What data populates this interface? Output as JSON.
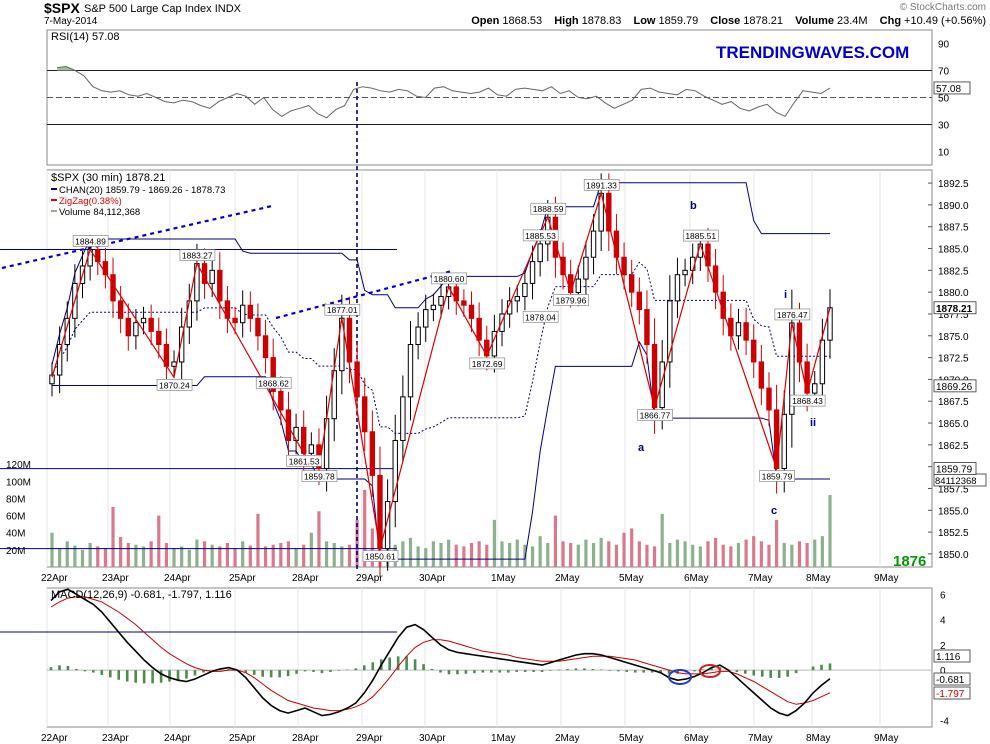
{
  "header": {
    "symbol": "$SPX",
    "name": "S&P 500 Large Cap Index",
    "exchange": "INDX",
    "date": "7-May-2014",
    "copyright": "© StockCharts.com",
    "open_label": "Open",
    "open": "1868.53",
    "high_label": "High",
    "high": "1878.83",
    "low_label": "Low",
    "low": "1859.79",
    "close_label": "Close",
    "close": "1878.21",
    "volume_label": "Volume",
    "volume": "23.4M",
    "chg_label": "Chg",
    "chg": "+10.49 (+0.56%)"
  },
  "watermark": "TRENDINGWAVES.COM",
  "target_label": "1876",
  "colors": {
    "up_candle": "#000000",
    "down_candle": "#cc0000",
    "channel": "#000080",
    "zigzag": "#dd0000",
    "volume_up": "#8fb08f",
    "volume_down": "#d87a8c",
    "rsi_line": "#666666",
    "macd": "#000000",
    "signal": "#cc0000",
    "histogram": "#4f8a4f",
    "watermark": "#0000cc",
    "target": "#009900",
    "trendline": "#0000cc"
  },
  "chart_data": [
    {
      "type": "line",
      "title": "RSI(14) 57.08",
      "ylim": [
        0,
        100
      ],
      "y_ticks": [
        10,
        30,
        50,
        70,
        90
      ],
      "reference_lines": [
        30,
        50,
        70
      ],
      "last_value": "57.08",
      "values": [
        72,
        73,
        70,
        66,
        58,
        55,
        54,
        55,
        52,
        51,
        53,
        50,
        47,
        46,
        48,
        47,
        44,
        42,
        47,
        50,
        53,
        51,
        45,
        50,
        41,
        36,
        40,
        42,
        44,
        38,
        35,
        41,
        44,
        56,
        58,
        57,
        55,
        54,
        56,
        55,
        51,
        50,
        57,
        58,
        55,
        54,
        53,
        54,
        57,
        52,
        51,
        56,
        57,
        56,
        55,
        58,
        53,
        55,
        50,
        49,
        51,
        46,
        42,
        45,
        48,
        56,
        57,
        54,
        53,
        52,
        56,
        55,
        51,
        48,
        45,
        47,
        42,
        40,
        43,
        45,
        39,
        36,
        46,
        55,
        54,
        53,
        57
      ]
    },
    {
      "type": "candlestick",
      "title": "$SPX (30 min) 1878.21",
      "legend": [
        "CHAN(20) 1859.79 - 1869.26 - 1878.73",
        "ZigZag(0.38%)",
        "Volume 84,112,368"
      ],
      "ylim": [
        1848.5,
        1894.0
      ],
      "y_ticks": [
        "1850.0",
        "1852.5",
        "1855.0",
        "1857.5",
        "1860.0",
        "1862.5",
        "1865.0",
        "1867.5",
        "1870.0",
        "1872.5",
        "1875.0",
        "1877.5",
        "1880.0",
        "1882.5",
        "1885.0",
        "1887.5",
        "1890.0",
        "1892.5"
      ],
      "x_labels": [
        "22Apr",
        "23Apr",
        "24Apr",
        "25Apr",
        "28Apr",
        "29Apr",
        "30Apr",
        "1May",
        "2May",
        "5May",
        "6May",
        "7May",
        "8May",
        "9May"
      ],
      "last_close_label": "1878.21",
      "channel_mid_label": "1869.26",
      "channel_low_label": "1859.79",
      "volume_last_label": "84112368",
      "volume_axis_labels": [
        "20M",
        "40M",
        "60M",
        "80M",
        "100M",
        "120M"
      ],
      "closes": [
        1870.5,
        1874,
        1877,
        1881,
        1883,
        1884.89,
        1883.5,
        1882,
        1879,
        1877,
        1875,
        1876.5,
        1877,
        1875.5,
        1874,
        1871.5,
        1872,
        1876,
        1879,
        1883.27,
        1881,
        1882.5,
        1879,
        1877,
        1876.5,
        1878.5,
        1877,
        1875,
        1872.5,
        1868.62,
        1866.5,
        1863,
        1864.5,
        1861.53,
        1862.5,
        1859.78,
        1865.5,
        1871,
        1877.01,
        1872,
        1868,
        1864,
        1859,
        1850.61,
        1856,
        1863,
        1868,
        1874,
        1876,
        1878,
        1878.5,
        1879.5,
        1880.6,
        1879,
        1878.5,
        1877,
        1874.5,
        1872.69,
        1875.5,
        1877.5,
        1879,
        1879.5,
        1881,
        1883.5,
        1885.53,
        1888.59,
        1884,
        1882,
        1879.96,
        1881.5,
        1884,
        1887,
        1891.33,
        1887,
        1884,
        1882,
        1880,
        1878,
        1874,
        1866.77,
        1872,
        1879,
        1882,
        1882.5,
        1884,
        1885.51,
        1883,
        1880,
        1877,
        1875,
        1876.5,
        1874.5,
        1872,
        1869,
        1866.5,
        1859.79,
        1866,
        1876.47,
        1872,
        1868.43,
        1869.5,
        1874.5,
        1878.21
      ],
      "zigzag": [
        [
          0,
          1870.24
        ],
        [
          5,
          1884.89
        ],
        [
          16,
          1870.24
        ],
        [
          19,
          1883.27
        ],
        [
          33,
          1861.53
        ],
        [
          35,
          1859.78
        ],
        [
          38,
          1877.01
        ],
        [
          43,
          1850.61
        ],
        [
          52,
          1880.6
        ],
        [
          57,
          1872.69
        ],
        [
          65,
          1888.59
        ],
        [
          68,
          1879.96
        ],
        [
          72,
          1891.33
        ],
        [
          79,
          1866.77
        ],
        [
          85,
          1885.51
        ],
        [
          95,
          1859.79
        ],
        [
          97,
          1876.47
        ],
        [
          99,
          1868.43
        ],
        [
          102,
          1878.21
        ]
      ],
      "annotations": [
        "1884.89",
        "1883.27",
        "1870.24",
        "1868.62",
        "1861.53",
        "1859.78",
        "1877.01",
        "1850.61",
        "1880.60",
        "1872.69",
        "1885.53",
        "1888.59",
        "1878.04",
        "1879.96",
        "1891.33",
        "1866.77",
        "1885.51",
        "1876.47",
        "1868.43",
        "1859.79"
      ],
      "wave_labels": [
        "a",
        "b",
        "c",
        "i",
        "ii"
      ],
      "volume": [
        40,
        22,
        30,
        25,
        20,
        28,
        24,
        22,
        70,
        35,
        28,
        26,
        24,
        30,
        60,
        28,
        22,
        24,
        20,
        32,
        30,
        26,
        24,
        28,
        22,
        30,
        25,
        62,
        24,
        26,
        28,
        30,
        22,
        26,
        40,
        65,
        30,
        28,
        24,
        26,
        55,
        90,
        45,
        30,
        28,
        26,
        30,
        34,
        24,
        22,
        30,
        28,
        32,
        26,
        24,
        28,
        30,
        26,
        55,
        30,
        28,
        32,
        26,
        24,
        36,
        28,
        60,
        30,
        28,
        26,
        32,
        28,
        34,
        30,
        26,
        40,
        45,
        30,
        26,
        24,
        62,
        28,
        32,
        30,
        26,
        24,
        30,
        34,
        26,
        24,
        28,
        32,
        36,
        30,
        26,
        55,
        28,
        26,
        30,
        28,
        32,
        36,
        84
      ]
    },
    {
      "type": "line",
      "title": "MACD(12,26,9) -0.681, -1.797, 1.116",
      "ylim": [
        -4.5,
        6.5
      ],
      "y_ticks": [
        "-4",
        "-2",
        "0",
        "2",
        "4",
        "6"
      ],
      "value_labels": [
        "1.116",
        "-0.681",
        "-1.797"
      ],
      "series": [
        {
          "name": "MACD",
          "values": [
            5.5,
            6.2,
            6.4,
            6.0,
            5.6,
            5.2,
            4.6,
            3.8,
            3.0,
            2.2,
            1.5,
            0.8,
            0.2,
            -0.3,
            -0.6,
            -0.8,
            -0.9,
            -0.7,
            -0.4,
            -0.1,
            0.1,
            0.2,
            0.0,
            -0.6,
            -1.4,
            -2.2,
            -2.8,
            -3.2,
            -3.4,
            -3.2,
            -3.0,
            -3.3,
            -3.6,
            -3.5,
            -3.3,
            -3.0,
            -2.6,
            -1.8,
            -0.8,
            0.4,
            1.5,
            2.6,
            3.4,
            3.6,
            3.2,
            2.6,
            2.0,
            1.6,
            1.4,
            1.3,
            1.2,
            1.1,
            1.0,
            0.9,
            0.8,
            0.7,
            0.6,
            0.5,
            0.4,
            0.6,
            0.8,
            1.0,
            1.2,
            1.3,
            1.3,
            1.2,
            1.0,
            0.8,
            0.6,
            0.4,
            0.2,
            0.0,
            -0.2,
            -0.6,
            -0.8,
            -0.7,
            -0.5,
            -0.2,
            0.2,
            0.4,
            0.0,
            -0.6,
            -1.2,
            -1.8,
            -2.4,
            -3.0,
            -3.4,
            -3.6,
            -3.2,
            -2.6,
            -1.8,
            -1.2,
            -0.681
          ]
        },
        {
          "name": "Signal",
          "values": [
            5.0,
            5.4,
            5.7,
            5.8,
            5.8,
            5.6,
            5.4,
            5.0,
            4.6,
            4.1,
            3.6,
            3.0,
            2.4,
            1.8,
            1.3,
            0.9,
            0.5,
            0.2,
            0.0,
            -0.1,
            -0.1,
            0.0,
            0.0,
            -0.2,
            -0.6,
            -1.1,
            -1.6,
            -2.0,
            -2.4,
            -2.6,
            -2.8,
            -3.0,
            -3.1,
            -3.2,
            -3.2,
            -3.1,
            -2.9,
            -2.6,
            -2.1,
            -1.4,
            -0.6,
            0.3,
            1.1,
            1.8,
            2.2,
            2.4,
            2.4,
            2.3,
            2.1,
            1.9,
            1.7,
            1.5,
            1.4,
            1.3,
            1.2,
            1.0,
            0.9,
            0.8,
            0.7,
            0.7,
            0.7,
            0.8,
            0.9,
            1.0,
            1.1,
            1.1,
            1.1,
            1.0,
            0.9,
            0.8,
            0.6,
            0.4,
            0.2,
            0.0,
            -0.2,
            -0.3,
            -0.3,
            -0.3,
            -0.2,
            -0.1,
            -0.1,
            -0.3,
            -0.6,
            -0.9,
            -1.3,
            -1.7,
            -2.1,
            -2.5,
            -2.7,
            -2.6,
            -2.4,
            -2.1,
            -1.797
          ]
        }
      ]
    }
  ]
}
